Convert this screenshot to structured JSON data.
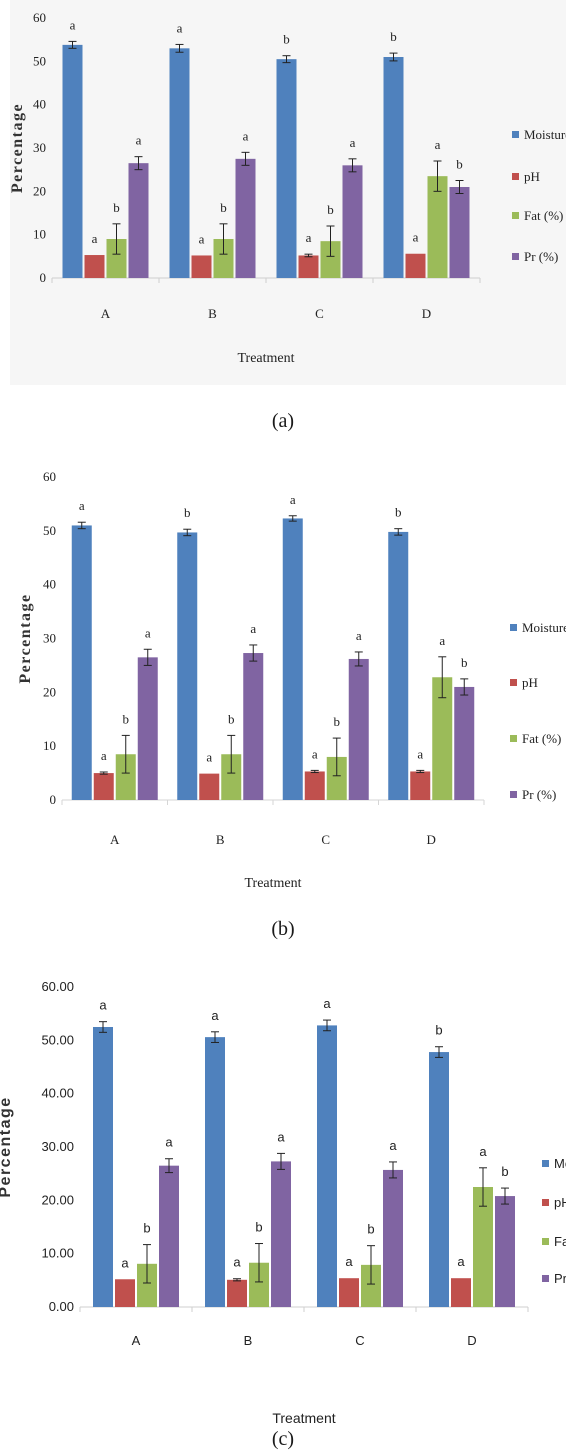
{
  "chart_data": [
    {
      "type": "bar",
      "panel_label": "(a)",
      "ylabel": "Percentage",
      "xlabel": "Treatment",
      "categories": [
        "A",
        "B",
        "C",
        "D"
      ],
      "ylim": [
        0,
        60
      ],
      "yticks": [
        "0",
        "10",
        "20",
        "30",
        "40",
        "50",
        "60"
      ],
      "legend_position": "right",
      "series": [
        {
          "name": "Moisture",
          "color": "#4f81bd",
          "values": [
            53.8,
            53.0,
            50.5,
            51.0
          ],
          "errors": [
            0.8,
            0.9,
            0.8,
            0.9
          ],
          "letters": [
            "a",
            "a",
            "b",
            "b"
          ]
        },
        {
          "name": "pH",
          "color": "#c0504d",
          "values": [
            5.3,
            5.2,
            5.2,
            5.6
          ],
          "errors": [
            0,
            0,
            0.3,
            0
          ],
          "letters": [
            "a",
            "a",
            "a",
            "a"
          ]
        },
        {
          "name": "Fat (%)",
          "color": "#9bbb59",
          "values": [
            9.0,
            9.0,
            8.5,
            23.5
          ],
          "errors": [
            3.5,
            3.5,
            3.5,
            3.5
          ],
          "letters": [
            "b",
            "b",
            "b",
            "a"
          ]
        },
        {
          "name": "Pr (%)",
          "color": "#8064a2",
          "values": [
            26.5,
            27.5,
            26.0,
            21.0
          ],
          "errors": [
            1.5,
            1.5,
            1.5,
            1.5
          ],
          "letters": [
            "a",
            "a",
            "a",
            "b"
          ]
        }
      ]
    },
    {
      "type": "bar",
      "panel_label": "(b)",
      "ylabel": "Percentage",
      "xlabel": "Treatment",
      "categories": [
        "A",
        "B",
        "C",
        "D"
      ],
      "ylim": [
        0,
        60
      ],
      "yticks": [
        "0",
        "10",
        "20",
        "30",
        "40",
        "50",
        "60"
      ],
      "legend_position": "right",
      "series": [
        {
          "name": "Moisture",
          "color": "#4f81bd",
          "values": [
            51.0,
            49.7,
            52.3,
            49.8
          ],
          "errors": [
            0.6,
            0.6,
            0.5,
            0.6
          ],
          "letters": [
            "a",
            "b",
            "a",
            "b"
          ]
        },
        {
          "name": "pH",
          "color": "#c0504d",
          "values": [
            5.0,
            4.9,
            5.3,
            5.3
          ],
          "errors": [
            0.2,
            0,
            0.2,
            0.2
          ],
          "letters": [
            "a",
            "a",
            "a",
            "a"
          ]
        },
        {
          "name": "Fat (%)",
          "color": "#9bbb59",
          "values": [
            8.5,
            8.5,
            8.0,
            22.8
          ],
          "errors": [
            3.5,
            3.5,
            3.5,
            3.8
          ],
          "letters": [
            "b",
            "b",
            "b",
            "a"
          ]
        },
        {
          "name": "Pr (%)",
          "color": "#8064a2",
          "values": [
            26.5,
            27.3,
            26.2,
            21.0
          ],
          "errors": [
            1.5,
            1.5,
            1.3,
            1.5
          ],
          "letters": [
            "a",
            "a",
            "a",
            "b"
          ]
        }
      ]
    },
    {
      "type": "bar",
      "panel_label": "(c)",
      "ylabel": "Percentage",
      "xlabel": "Treatment",
      "categories": [
        "A",
        "B",
        "C",
        "D"
      ],
      "ylim": [
        0,
        60
      ],
      "yticks": [
        "0.00",
        "10.00",
        "20.00",
        "30.00",
        "40.00",
        "50.00",
        "60.00"
      ],
      "legend_position": "right (clipped)",
      "series": [
        {
          "name": "Mo",
          "color": "#4f81bd",
          "values": [
            52.5,
            50.6,
            52.8,
            47.8
          ],
          "errors": [
            1.0,
            1.0,
            1.0,
            1.0
          ],
          "letters": [
            "a",
            "a",
            "a",
            "b"
          ]
        },
        {
          "name": "pH",
          "color": "#c0504d",
          "values": [
            5.2,
            5.1,
            5.4,
            5.4
          ],
          "errors": [
            0,
            0.2,
            0,
            0
          ],
          "letters": [
            "a",
            "a",
            "a",
            "a"
          ]
        },
        {
          "name": "Fat",
          "color": "#9bbb59",
          "values": [
            8.1,
            8.3,
            7.9,
            22.5
          ],
          "errors": [
            3.6,
            3.6,
            3.6,
            3.6
          ],
          "letters": [
            "b",
            "b",
            "b",
            "a"
          ]
        },
        {
          "name": "Pr (",
          "color": "#8064a2",
          "values": [
            26.5,
            27.3,
            25.7,
            20.8
          ],
          "errors": [
            1.3,
            1.5,
            1.5,
            1.5
          ],
          "letters": [
            "a",
            "a",
            "a",
            "b"
          ]
        }
      ]
    }
  ]
}
